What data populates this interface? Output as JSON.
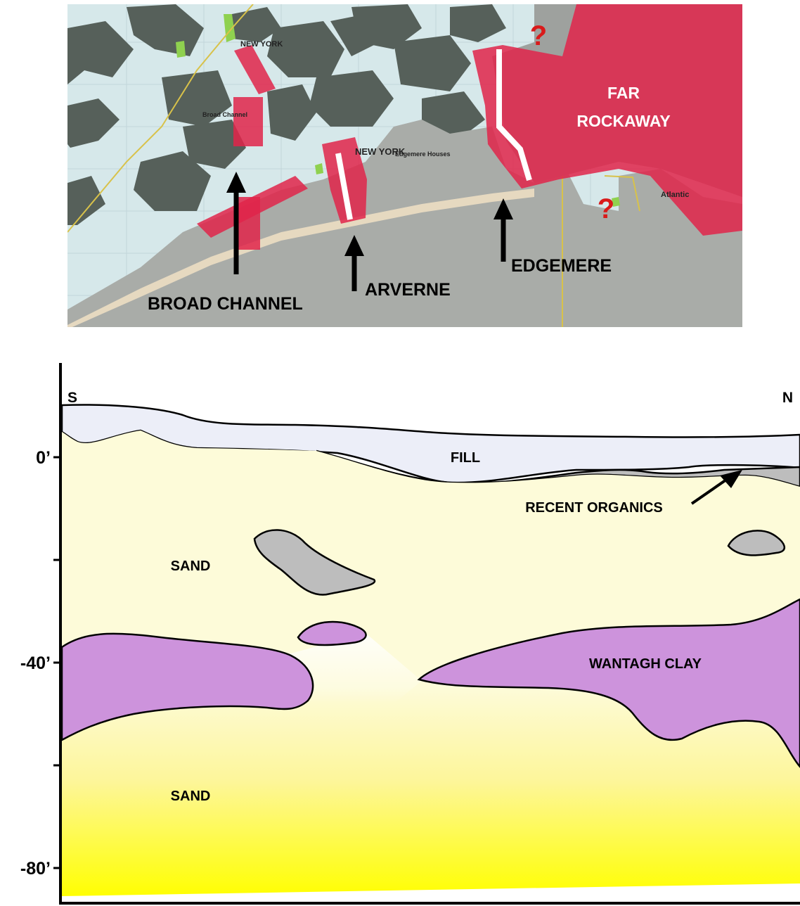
{
  "map": {
    "place_labels": {
      "broad_channel": "BROAD CHANNEL",
      "arverne": "ARVERNE",
      "edgemere": "EDGEMERE",
      "far_rockaway_line1": "FAR",
      "far_rockaway_line2": "ROCKAWAY"
    },
    "uncertain_markers": [
      "?",
      "?"
    ],
    "map_text": {
      "new_york_1": "NEW YORK",
      "new_york_2": "NEW YORK",
      "broad_channel_small": "Broad Channel",
      "edgemere_small": "Edgemere Houses",
      "atlantic": "Atlantic"
    },
    "colors": {
      "water": "#d6e8ea",
      "land": "#5a645e",
      "urban": "#a7aaa6",
      "beach": "#e6d9c0",
      "highlight_zone": "#e0244a",
      "park": "#8fd14f",
      "question": "#d91a1a"
    }
  },
  "cross_section": {
    "directions": {
      "south": "S",
      "north": "N"
    },
    "depth_labels": [
      "0’",
      "-40’",
      "-80’"
    ],
    "layers": {
      "fill": "FILL",
      "recent_organics": "RECENT ORGANICS",
      "sand_upper": "SAND",
      "sand_lower": "SAND",
      "wantagh_clay": "WANTAGH CLAY"
    },
    "colors": {
      "fill": "#eceef8",
      "organics": "#bdbdbd",
      "sand_top": "#fdfbd9",
      "sand_bottom": "#ffff00",
      "clay": "#cd93dc",
      "outline": "#000000"
    }
  }
}
